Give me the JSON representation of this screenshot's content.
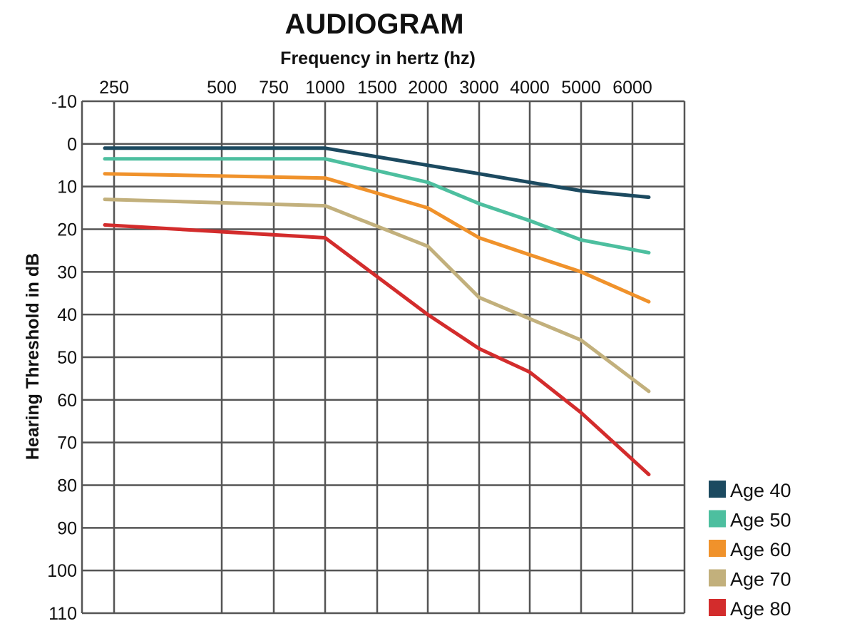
{
  "chart_data": {
    "type": "line",
    "title": "AUDIOGRAM",
    "xlabel": "Frequency in hertz (hz)",
    "ylabel": "Hearing Threshold in dB",
    "x_ticks": [
      "250",
      "500",
      "750",
      "1000",
      "1500",
      "2000",
      "3000",
      "4000",
      "5000",
      "6000"
    ],
    "y_ticks": [
      "-10",
      "0",
      "10",
      "20",
      "30",
      "40",
      "50",
      "60",
      "70",
      "80",
      "90",
      "100",
      "110"
    ],
    "ylim": [
      -10,
      110
    ],
    "y_inverted": true,
    "grid": true,
    "legend_position": "bottom-right",
    "series": [
      {
        "name": "Age 40",
        "color": "#1c4a60",
        "points": [
          [
            "250",
            1
          ],
          [
            "1000",
            1
          ],
          [
            "2000",
            5
          ],
          [
            "3000",
            7
          ],
          [
            "4000",
            9
          ],
          [
            "5000",
            11
          ],
          [
            "6000",
            12.5
          ]
        ]
      },
      {
        "name": "Age 50",
        "color": "#4dbf9f",
        "points": [
          [
            "250",
            3.5
          ],
          [
            "1000",
            3.5
          ],
          [
            "2000",
            9
          ],
          [
            "3000",
            14
          ],
          [
            "4000",
            18
          ],
          [
            "5000",
            22.5
          ],
          [
            "6000",
            25.5
          ]
        ]
      },
      {
        "name": "Age 60",
        "color": "#f0922b",
        "points": [
          [
            "250",
            7
          ],
          [
            "1000",
            8
          ],
          [
            "2000",
            15
          ],
          [
            "3000",
            22
          ],
          [
            "4000",
            26
          ],
          [
            "5000",
            30
          ],
          [
            "6000",
            37
          ]
        ]
      },
      {
        "name": "Age 70",
        "color": "#c2b07c",
        "points": [
          [
            "250",
            13
          ],
          [
            "1000",
            14.5
          ],
          [
            "2000",
            24
          ],
          [
            "3000",
            36
          ],
          [
            "4000",
            41
          ],
          [
            "5000",
            46
          ],
          [
            "6000",
            58
          ]
        ]
      },
      {
        "name": "Age 80",
        "color": "#d32c2c",
        "points": [
          [
            "250",
            19
          ],
          [
            "1000",
            22
          ],
          [
            "2000",
            40
          ],
          [
            "3000",
            48
          ],
          [
            "4000",
            53.5
          ],
          [
            "5000",
            63
          ],
          [
            "6000",
            77.5
          ]
        ]
      }
    ]
  }
}
